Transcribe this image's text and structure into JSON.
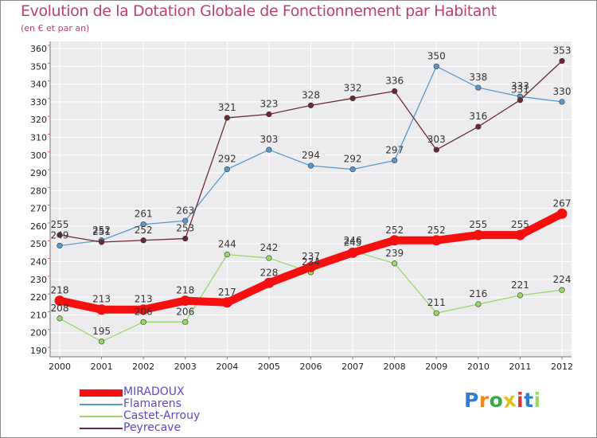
{
  "chart_data": {
    "type": "line",
    "title": "Evolution de la Dotation Globale de Fonctionnement par Habitant",
    "subtitle": "(en € et par an)",
    "xlabel": "",
    "ylabel": "",
    "categories": [
      "2000",
      "2001",
      "2002",
      "2003",
      "2004",
      "2005",
      "2006",
      "2007",
      "2008",
      "2009",
      "2010",
      "2011",
      "2012"
    ],
    "ylim": [
      190,
      360
    ],
    "yticks": [
      190,
      200,
      210,
      220,
      230,
      240,
      250,
      260,
      270,
      280,
      290,
      300,
      310,
      320,
      330,
      340,
      350,
      360
    ],
    "grid": true,
    "series": [
      {
        "name": "Flamarens",
        "color": "#5a9acb",
        "values": [
          249,
          252,
          261,
          263,
          292,
          303,
          294,
          292,
          297,
          350,
          338,
          333,
          330
        ]
      },
      {
        "name": "Castet-Arrouy",
        "color": "#9ad86a",
        "values": [
          208,
          195,
          206,
          206,
          244,
          242,
          234,
          246,
          239,
          211,
          216,
          221,
          224
        ]
      },
      {
        "name": "Peyrecave",
        "color": "#6e2a33",
        "values": [
          255,
          251,
          252,
          253,
          321,
          323,
          328,
          332,
          336,
          303,
          316,
          331,
          353
        ]
      },
      {
        "name": "MIRADOUX",
        "color": "#f50f0f",
        "values": [
          218,
          213,
          213,
          218,
          217,
          228,
          237,
          245,
          252,
          252,
          255,
          255,
          267
        ]
      }
    ],
    "legend": [
      "MIRADOUX",
      "Flamarens",
      "Castet-Arrouy",
      "Peyrecave"
    ],
    "legend_position": "bottom-left"
  },
  "logo": {
    "letters": [
      "P",
      "r",
      "o",
      "x",
      "i",
      "t",
      "i"
    ],
    "colors": [
      "#2a7fd4",
      "#f08a1c",
      "#3aa84a",
      "#e0c020",
      "#d83a3a",
      "#2a7fd4",
      "#9ad86a"
    ]
  }
}
